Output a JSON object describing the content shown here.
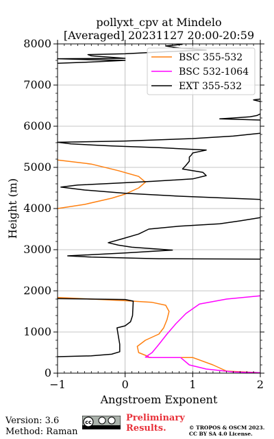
{
  "chart_data": {
    "type": "line",
    "title": "pollyxt_cpv at Mindelo",
    "subtitle": "[Averaged] 20231127 20:00-20:59",
    "xlabel": "Angstroem Exponent",
    "ylabel": "Height (m)",
    "xlim": [
      -1,
      2
    ],
    "ylim": [
      0,
      8000
    ],
    "xticks": [
      -1,
      0,
      1,
      2
    ],
    "xtick_labels": [
      "−1",
      "0",
      "1",
      "2"
    ],
    "yticks": [
      0,
      1000,
      2000,
      3000,
      4000,
      5000,
      6000,
      7000,
      8000
    ],
    "ytick_labels": [
      "0",
      "1000",
      "2000",
      "3000",
      "4000",
      "5000",
      "6000",
      "7000",
      "8000"
    ],
    "grid": true,
    "legend_position": "top-right",
    "series": [
      {
        "name": "BSC 355-532",
        "color": "#ff7f0e",
        "segments": [
          [
            [
              0.35,
              380
            ],
            [
              1.0,
              380
            ],
            [
              1.3,
              200
            ],
            [
              1.5,
              50
            ],
            [
              2.0,
              10
            ]
          ],
          [
            [
              0.35,
              400
            ],
            [
              0.2,
              500
            ],
            [
              0.18,
              650
            ],
            [
              0.3,
              800
            ],
            [
              0.5,
              950
            ],
            [
              0.57,
              1100
            ],
            [
              0.62,
              1300
            ],
            [
              0.65,
              1500
            ],
            [
              0.6,
              1650
            ],
            [
              0.4,
              1720
            ],
            [
              0.0,
              1760
            ],
            [
              -0.5,
              1800
            ],
            [
              -1.0,
              1840
            ]
          ],
          [
            [
              -1.0,
              4000
            ],
            [
              -0.6,
              4100
            ],
            [
              -0.2,
              4250
            ],
            [
              0.0,
              4350
            ],
            [
              0.2,
              4500
            ],
            [
              0.3,
              4640
            ],
            [
              0.2,
              4780
            ],
            [
              -0.1,
              4920
            ],
            [
              -0.5,
              5080
            ],
            [
              -1.0,
              5180
            ]
          ]
        ]
      },
      {
        "name": "BSC 532-1064",
        "color": "#ff00ff",
        "segments": [
          [
            [
              2.0,
              10
            ],
            [
              1.6,
              30
            ],
            [
              1.2,
              100
            ],
            [
              0.95,
              200
            ],
            [
              0.82,
              380
            ]
          ],
          [
            [
              0.82,
              380
            ],
            [
              0.62,
              380
            ],
            [
              0.4,
              380
            ],
            [
              0.3,
              390
            ],
            [
              0.4,
              500
            ],
            [
              0.5,
              700
            ],
            [
              0.62,
              950
            ],
            [
              0.75,
              1200
            ],
            [
              0.9,
              1450
            ],
            [
              1.1,
              1680
            ],
            [
              1.5,
              1800
            ],
            [
              2.0,
              1880
            ]
          ]
        ]
      },
      {
        "name": "EXT 355-532",
        "color": "#000000",
        "segments": [
          [
            [
              -1.0,
              400
            ],
            [
              -0.5,
              420
            ],
            [
              -0.2,
              460
            ],
            [
              -0.08,
              520
            ],
            [
              -0.08,
              700
            ],
            [
              -0.1,
              900
            ],
            [
              -0.12,
              1100
            ],
            [
              0.0,
              1150
            ],
            [
              0.08,
              1250
            ],
            [
              0.11,
              1400
            ],
            [
              0.12,
              1750
            ],
            [
              0.0,
              1790
            ],
            [
              -0.5,
              1800
            ],
            [
              -1.0,
              1810
            ]
          ],
          [
            [
              2.0,
              2770
            ],
            [
              0.5,
              2780
            ],
            [
              -0.5,
              2820
            ],
            [
              -0.85,
              2850
            ],
            [
              0.0,
              2920
            ],
            [
              0.7,
              2990
            ],
            [
              0.1,
              3060
            ],
            [
              -0.1,
              3110
            ],
            [
              -0.25,
              3170
            ],
            [
              -0.05,
              3260
            ],
            [
              0.2,
              3380
            ],
            [
              0.35,
              3500
            ],
            [
              0.8,
              3570
            ],
            [
              1.4,
              3630
            ],
            [
              1.7,
              3700
            ],
            [
              2.0,
              3780
            ]
          ],
          [
            [
              2.0,
              4220
            ],
            [
              0.8,
              4300
            ],
            [
              0.0,
              4370
            ],
            [
              -0.6,
              4450
            ],
            [
              -0.95,
              4520
            ],
            [
              -0.7,
              4570
            ],
            [
              -0.2,
              4610
            ],
            [
              0.4,
              4660
            ],
            [
              1.0,
              4720
            ],
            [
              1.2,
              4800
            ],
            [
              1.15,
              4880
            ],
            [
              0.85,
              4960
            ],
            [
              0.9,
              5050
            ],
            [
              0.95,
              5150
            ],
            [
              0.95,
              5250
            ],
            [
              0.98,
              5300
            ],
            [
              1.0,
              5350
            ],
            [
              1.2,
              5420
            ],
            [
              0.5,
              5480
            ],
            [
              -0.2,
              5520
            ],
            [
              -0.8,
              5570
            ],
            [
              -1.0,
              5610
            ],
            [
              0.0,
              5640
            ],
            [
              1.0,
              5700
            ],
            [
              1.6,
              5760
            ],
            [
              2.0,
              5830
            ]
          ],
          [
            [
              2.0,
              6150
            ],
            [
              1.4,
              6180
            ],
            [
              1.6,
              6200
            ],
            [
              1.85,
              6230
            ],
            [
              1.95,
              6260
            ],
            [
              2.0,
              6300
            ]
          ],
          [
            [
              2.0,
              6600
            ],
            [
              1.9,
              6640
            ],
            [
              2.0,
              6660
            ]
          ],
          [
            [
              -1.0,
              7530
            ],
            [
              -0.5,
              7560
            ],
            [
              0.0,
              7600
            ],
            [
              -0.6,
              7620
            ],
            [
              -1.0,
              7640
            ],
            [
              0.0,
              7650
            ],
            [
              -0.5,
              7710
            ],
            [
              -0.55,
              7740
            ],
            [
              0.0,
              7760
            ],
            [
              0.6,
              7810
            ],
            [
              1.2,
              7850
            ],
            [
              0.8,
              7900
            ],
            [
              0.6,
              7950
            ],
            [
              0.85,
              7990
            ]
          ]
        ]
      }
    ]
  },
  "footer": {
    "version": "Version: 3.6",
    "method": "Method: Raman",
    "preliminary_line1": "Preliminary",
    "preliminary_line2": "Results.",
    "copyright_line1": "© TROPOS & OSCM 2023.",
    "copyright_line2": "CC BY SA 4.0 License."
  },
  "license_badge": {
    "text": "cc",
    "icon": "cc-by-sa-badge"
  }
}
